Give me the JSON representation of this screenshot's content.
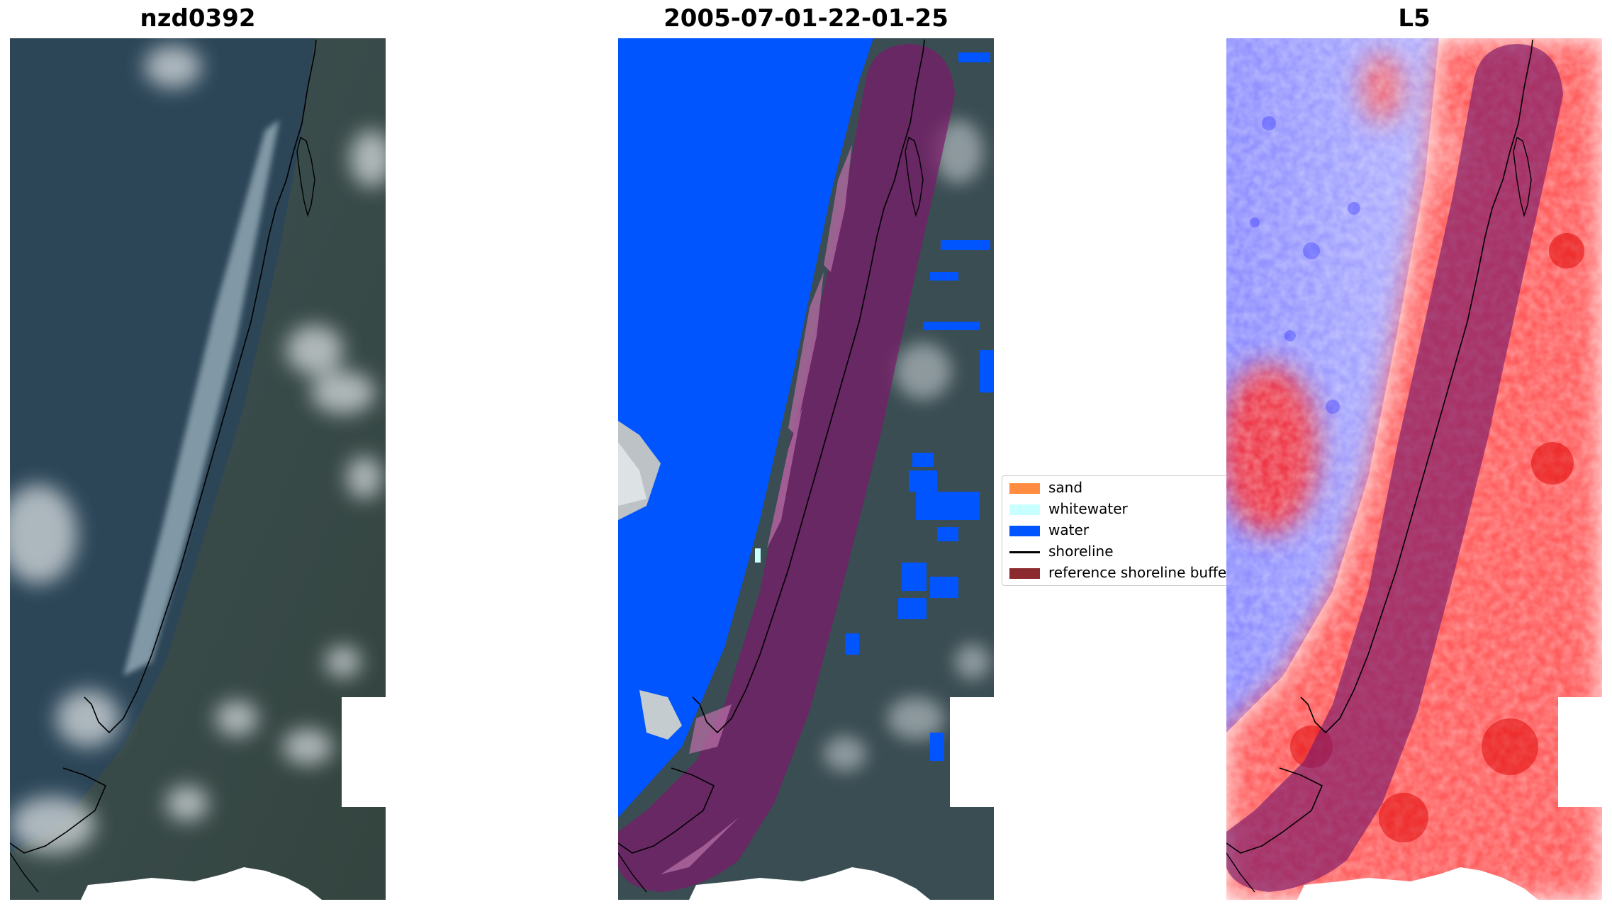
{
  "panels": [
    {
      "title": "nzd0392",
      "kind": "rgb"
    },
    {
      "title": "2005-07-01-22-01-25",
      "kind": "classified"
    },
    {
      "title": "L5",
      "kind": "index"
    }
  ],
  "legend": {
    "items": [
      {
        "label": "sand",
        "color": "#ff8c40",
        "type": "patch"
      },
      {
        "label": "whitewater",
        "color": "#c8ffff",
        "type": "patch"
      },
      {
        "label": "water",
        "color": "#0055ff",
        "type": "patch"
      },
      {
        "label": "shoreline",
        "color": "#000000",
        "type": "line"
      },
      {
        "label": "reference shoreline buffer",
        "color": "#8b2a2f",
        "type": "patch"
      }
    ]
  },
  "colors": {
    "water_class": "#0055ff",
    "buffer_overlay": "#7a1a6a",
    "ocean_rgb": "#2c4658",
    "land_rgb": "#3a4c4e",
    "index_positive": "#ff0000",
    "index_negative": "#3a3aff"
  }
}
